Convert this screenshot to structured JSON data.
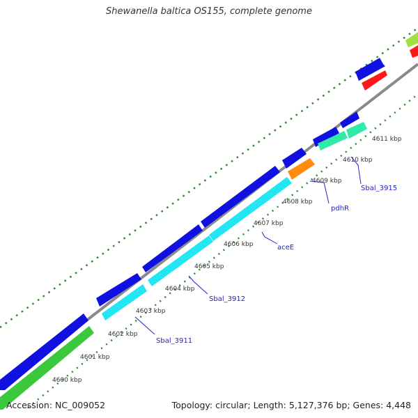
{
  "title": "Shewanella baltica OS155, complete genome",
  "footer": {
    "accession": "Accession: NC_009052",
    "topology": "Topology: circular; Length: 5,127,376 bp; Genes: 4,448"
  },
  "colors": {
    "backbone": "#8a8a8a",
    "cds_blue": "#1010e0",
    "cyan": "#22e6f2",
    "green": "#3cc83c",
    "light_green": "#a0e040",
    "orange": "#ff8c10",
    "red": "#ff1818",
    "teal": "#30eaa8",
    "tick": "#2a8a2a",
    "label": "#2222cc"
  },
  "tick_labels": [
    "4600 kbp",
    "4601 kbp",
    "4602 kbp",
    "4603 kbp",
    "4604 kbp",
    "4605 kbp",
    "4606 kbp",
    "4607 kbp",
    "4608 kbp",
    "4609 kbp",
    "4610 kbp",
    "4611 kbp"
  ],
  "gene_labels": [
    "Sbal_3911",
    "Sbal_3912",
    "aceE",
    "pdhR",
    "Sbal_3915"
  ]
}
